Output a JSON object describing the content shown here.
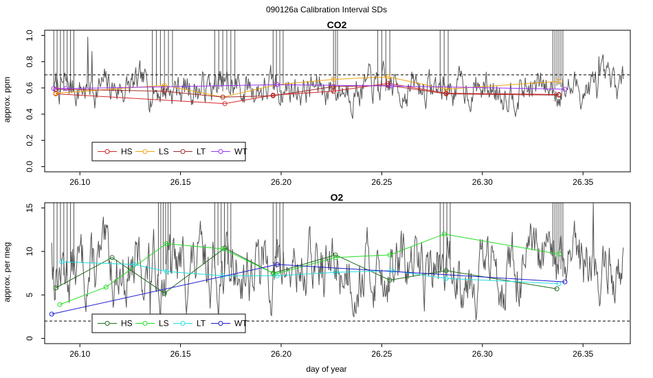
{
  "figure": {
    "title": "090126a   Calibration Interval SDs",
    "xlabel": "day of year"
  },
  "chart_data": [
    {
      "type": "line",
      "title": "CO2",
      "ylabel": "approx. ppm",
      "xlim": [
        26.0825,
        26.3735
      ],
      "ylim": [
        -0.04,
        1.04
      ],
      "xticks": [
        "26.10",
        "26.15",
        "26.20",
        "26.25",
        "26.30",
        "26.35"
      ],
      "yticks": [
        "0.0",
        "0.2",
        "0.4",
        "0.6",
        "0.8",
        "1.0"
      ],
      "hline": 0.7,
      "trace": {
        "color": "#555555",
        "x_start": 26.087,
        "x_end": 26.37,
        "mean": 0.6,
        "sd": 0.07,
        "seed": 7,
        "spike_top": 1.04,
        "spike_bursts": [
          [
            26.087,
            26.097,
            7
          ],
          [
            26.136,
            26.146,
            6
          ],
          [
            26.167,
            26.177,
            6
          ],
          [
            26.196,
            26.201,
            4
          ],
          [
            26.226,
            26.228,
            3
          ],
          [
            26.248,
            26.254,
            4
          ],
          [
            26.279,
            26.283,
            3
          ],
          [
            26.335,
            26.34,
            6
          ]
        ],
        "blips": [
          [
            26.104,
            0.99
          ],
          [
            26.106,
            0.88
          ],
          [
            26.358,
            0.84
          ]
        ]
      },
      "legend": [
        "HS",
        "LS",
        "LT",
        "WT"
      ],
      "series": [
        {
          "name": "HS",
          "color": "#d62728",
          "x": [
            26.088,
            26.172,
            26.196,
            26.226,
            26.253,
            26.282,
            26.338
          ],
          "y": [
            0.555,
            0.48,
            0.545,
            0.575,
            0.635,
            0.56,
            0.55
          ]
        },
        {
          "name": "LS",
          "color": "#f0a30a",
          "x": [
            26.088,
            26.142,
            26.171,
            26.198,
            26.226,
            26.253,
            26.282,
            26.338
          ],
          "y": [
            0.56,
            0.62,
            0.53,
            0.625,
            0.665,
            0.685,
            0.59,
            0.65
          ]
        },
        {
          "name": "LT",
          "color": "#a52a2a",
          "x": [
            26.088,
            26.142,
            26.171,
            26.196,
            26.226,
            26.253,
            26.282,
            26.338
          ],
          "y": [
            0.59,
            0.575,
            0.53,
            0.54,
            0.61,
            0.62,
            0.555,
            0.545
          ]
        },
        {
          "name": "WT",
          "color": "#9b30ff",
          "x": [
            26.087,
            26.093,
            26.198,
            26.255,
            26.341
          ],
          "y": [
            0.595,
            0.595,
            0.625,
            0.615,
            0.59
          ]
        }
      ]
    },
    {
      "type": "line",
      "title": "O2",
      "ylabel": "approx. per meg",
      "xlim": [
        26.0825,
        26.3735
      ],
      "ylim": [
        -0.6,
        15.6
      ],
      "xticks": [
        "26.10",
        "26.15",
        "26.20",
        "26.25",
        "26.30",
        "26.35"
      ],
      "yticks": [
        "0",
        "5",
        "10",
        "15"
      ],
      "hline": 2.0,
      "trace": {
        "color": "#555555",
        "x_start": 26.086,
        "x_end": 26.37,
        "mean": 8.0,
        "sd": 2.0,
        "seed": 13,
        "spike_top": 15.6,
        "spike_bursts": [
          [
            26.087,
            26.097,
            7
          ],
          [
            26.139,
            26.145,
            6
          ],
          [
            26.167,
            26.175,
            6
          ],
          [
            26.196,
            26.201,
            4
          ],
          [
            26.279,
            26.284,
            4
          ],
          [
            26.335,
            26.34,
            6
          ]
        ],
        "blips": [
          [
            26.086,
            11.0
          ],
          [
            26.135,
            2.6
          ],
          [
            26.355,
            15.6
          ]
        ]
      },
      "legend": [
        "HS",
        "LS",
        "LT",
        "WT"
      ],
      "series": [
        {
          "name": "HS",
          "color": "#1e6b1e",
          "x": [
            26.088,
            26.116,
            26.142,
            26.172,
            26.196,
            26.227,
            26.254,
            26.282,
            26.337
          ],
          "y": [
            5.8,
            9.3,
            5.2,
            10.4,
            7.5,
            9.6,
            6.7,
            7.8,
            5.7
          ]
        },
        {
          "name": "LS",
          "color": "#22dd22",
          "x": [
            26.09,
            26.113,
            26.143,
            26.171,
            26.197,
            26.227,
            26.254,
            26.281,
            26.338
          ],
          "y": [
            3.9,
            5.9,
            10.9,
            10.3,
            7.4,
            9.3,
            9.6,
            12.0,
            9.7
          ]
        },
        {
          "name": "LT",
          "color": "#22dddd",
          "x": [
            26.091,
            26.127,
            26.143,
            26.171,
            26.198,
            26.227,
            26.255,
            26.282,
            26.338
          ],
          "y": [
            8.8,
            8.5,
            7.7,
            7.2,
            7.2,
            7.6,
            7.8,
            6.9,
            6.3
          ]
        },
        {
          "name": "WT",
          "color": "#1c1ccc",
          "x": [
            26.086,
            26.198,
            26.341
          ],
          "y": [
            2.8,
            8.5,
            6.5
          ]
        }
      ]
    }
  ]
}
